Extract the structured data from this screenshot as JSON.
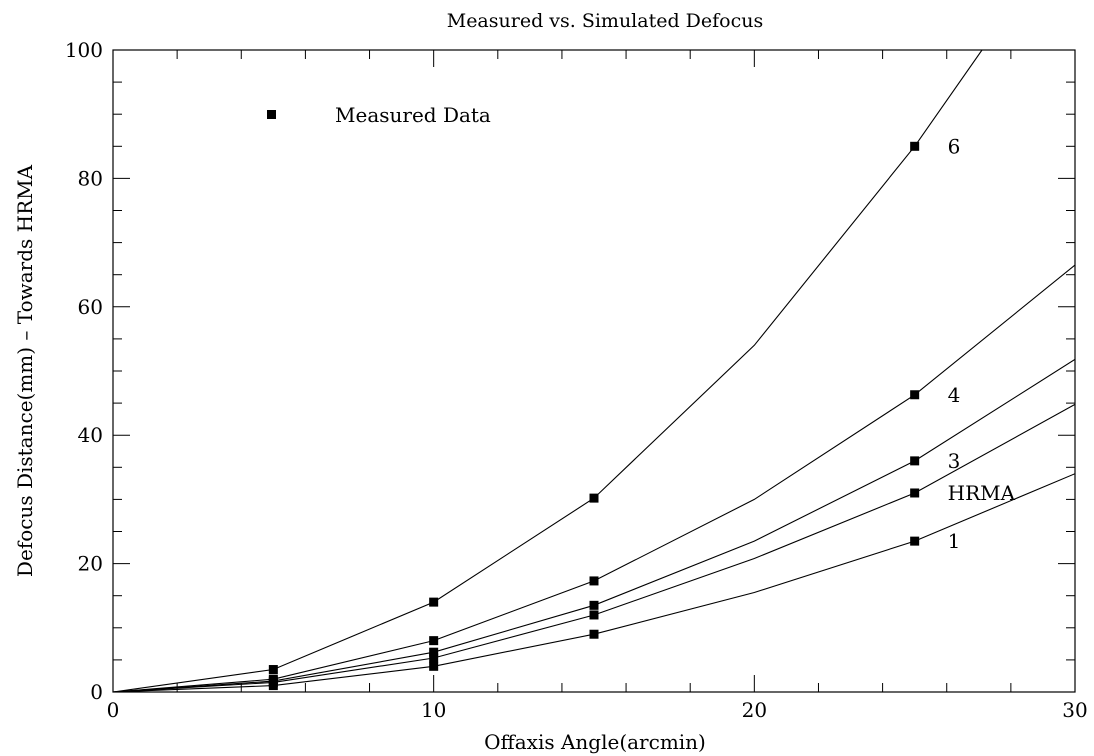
{
  "chart_data": {
    "type": "line",
    "title": "Measured vs. Simulated Defocus",
    "xlabel": "Offaxis Angle(arcmin)",
    "ylabel": "Defocus Distance(mm)  –  Towards HRMA",
    "xlim": [
      0,
      30
    ],
    "ylim": [
      0,
      100
    ],
    "x_ticks": [
      0,
      10,
      20,
      30
    ],
    "y_ticks": [
      0,
      20,
      40,
      60,
      80,
      100
    ],
    "x_minor_step": 2,
    "y_minor_step": 5,
    "legend": {
      "label": "Measured Data",
      "placement": "top-left",
      "marker": "square"
    },
    "series": [
      {
        "name": "6",
        "simulated": {
          "x": [
            0,
            5,
            10,
            15,
            20,
            25,
            27.1
          ],
          "y": [
            0,
            3.5,
            14,
            30.2,
            54,
            85,
            100
          ]
        },
        "measured": {
          "x": [
            5,
            10,
            15,
            25
          ],
          "y": [
            3.5,
            14,
            30.2,
            85
          ]
        }
      },
      {
        "name": "4",
        "simulated": {
          "x": [
            0,
            5,
            10,
            15,
            20,
            25,
            30
          ],
          "y": [
            0,
            2,
            8,
            17.3,
            30,
            46.3,
            66.5
          ]
        },
        "measured": {
          "x": [
            5,
            10,
            15,
            25
          ],
          "y": [
            2,
            8,
            17.3,
            46.3
          ]
        }
      },
      {
        "name": "3",
        "simulated": {
          "x": [
            0,
            5,
            10,
            15,
            20,
            25,
            30
          ],
          "y": [
            0,
            1.7,
            6.2,
            13.5,
            23.5,
            36,
            51.8
          ]
        },
        "measured": {
          "x": [
            5,
            10,
            15,
            25
          ],
          "y": [
            1.7,
            6.2,
            13.5,
            36
          ]
        }
      },
      {
        "name": "HRMA",
        "simulated": {
          "x": [
            0,
            5,
            10,
            15,
            20,
            25,
            30
          ],
          "y": [
            0,
            1.5,
            5.3,
            12,
            20.8,
            31,
            44.8
          ]
        },
        "measured": {
          "x": [
            5,
            10,
            15,
            25
          ],
          "y": [
            1.5,
            5.3,
            12,
            31
          ]
        }
      },
      {
        "name": "1",
        "simulated": {
          "x": [
            0,
            5,
            10,
            15,
            20,
            25,
            30
          ],
          "y": [
            0,
            1,
            4,
            9,
            15.5,
            23.5,
            34
          ]
        },
        "measured": {
          "x": [
            5,
            10,
            15,
            25
          ],
          "y": [
            1,
            4,
            9,
            23.5
          ]
        }
      }
    ]
  }
}
